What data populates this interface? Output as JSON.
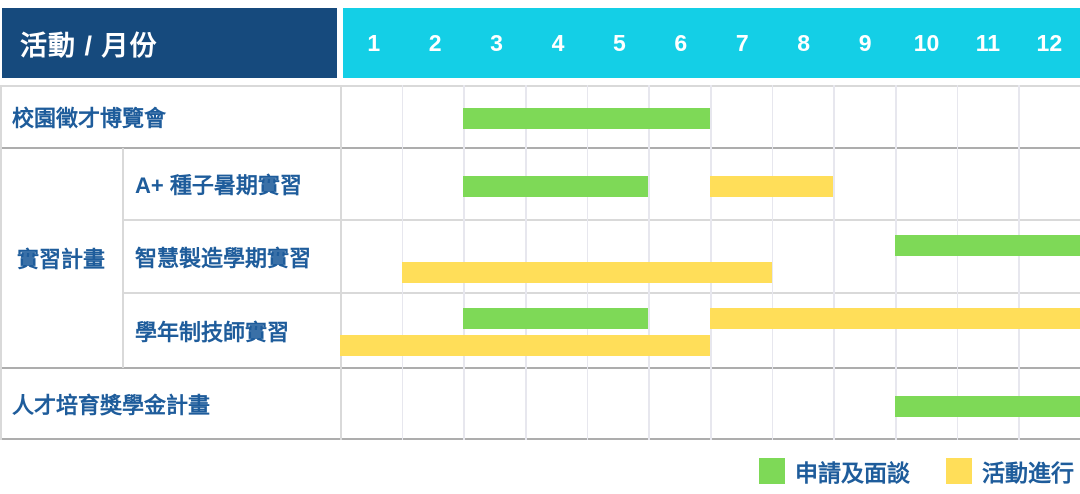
{
  "colors": {
    "header_bg": "#164a7d",
    "months_bg": "#14cfe6",
    "green": "#7ed957",
    "yellow": "#ffde59",
    "label_text": "#1e5c9b"
  },
  "header": {
    "title": "活動 / 月份"
  },
  "legend": [
    {
      "label": "申請及面談",
      "color": "#7ed957"
    },
    {
      "label": "活動進行",
      "color": "#ffde59"
    }
  ],
  "chart_data": {
    "type": "gantt",
    "title": "活動 / 月份",
    "x_ticks": [
      "1",
      "2",
      "3",
      "4",
      "5",
      "6",
      "7",
      "8",
      "9",
      "10",
      "11",
      "12"
    ],
    "x_range": [
      1,
      12
    ],
    "grid": true,
    "legend_position": "bottom-right",
    "phases": [
      {
        "name": "申請及面談",
        "color": "#7ed957"
      },
      {
        "name": "活動進行",
        "color": "#ffde59"
      }
    ],
    "groups": [
      {
        "label": "實習計畫",
        "task_indexes": [
          1,
          2,
          3
        ]
      }
    ],
    "tasks": [
      {
        "name": "校園徵才博覽會",
        "group": "",
        "lanes": 1,
        "bars": [
          {
            "phase": "申請及面談",
            "start_month": 3,
            "end_month": 6,
            "lane": 0
          }
        ]
      },
      {
        "name": "A+ 種子暑期實習",
        "group": "實習計畫",
        "lanes": 1,
        "bars": [
          {
            "phase": "申請及面談",
            "start_month": 3,
            "end_month": 5,
            "lane": 0
          },
          {
            "phase": "活動進行",
            "start_month": 7,
            "end_month": 8,
            "lane": 0
          }
        ]
      },
      {
        "name": "智慧製造學期實習",
        "group": "實習計畫",
        "lanes": 2,
        "bars": [
          {
            "phase": "申請及面談",
            "start_month": 10,
            "end_month": 12,
            "lane": 0
          },
          {
            "phase": "活動進行",
            "start_month": 2,
            "end_month": 7,
            "lane": 1
          }
        ]
      },
      {
        "name": "學年制技師實習",
        "group": "實習計畫",
        "lanes": 2,
        "bars": [
          {
            "phase": "申請及面談",
            "start_month": 3,
            "end_month": 5,
            "lane": 0
          },
          {
            "phase": "活動進行",
            "start_month": 7,
            "end_month": 12,
            "lane": 0
          },
          {
            "phase": "活動進行",
            "start_month": 1,
            "end_month": 6,
            "lane": 1
          }
        ]
      },
      {
        "name": "人才培育獎學金計畫",
        "group": "",
        "lanes": 1,
        "bars": [
          {
            "phase": "申請及面談",
            "start_month": 10,
            "end_month": 12,
            "lane": 0
          }
        ]
      }
    ]
  }
}
